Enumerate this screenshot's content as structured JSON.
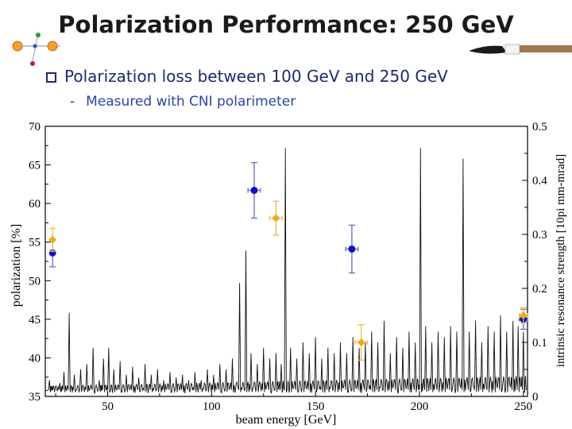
{
  "slide": {
    "title": "Polarization Performance: 250 GeV",
    "bullet": "Polarization loss between 100 GeV and 250 GeV",
    "subbullet": "Measured with CNI polarimeter",
    "subbullet_dash": "-",
    "title_color": "#1a1a1a",
    "bullet_color": "#1c2a6e",
    "subbullet_color": "#2a44a8"
  },
  "chart_data": {
    "type": "scatter",
    "title": "",
    "xlabel": "beam energy [GeV]",
    "ylabel": "polarization [%]",
    "y2label": "intrinsic resonance strength [10pi mm-mrad]",
    "xlim": [
      20,
      252
    ],
    "ylim": [
      35,
      70
    ],
    "y2lim": [
      0,
      0.5
    ],
    "xticks": [
      50,
      100,
      150,
      200,
      250
    ],
    "yticks": [
      35,
      40,
      45,
      50,
      55,
      60,
      65,
      70
    ],
    "y2ticks": [
      0,
      0.1,
      0.2,
      0.3,
      0.4,
      0.5
    ],
    "y2ticklabels": [
      "0",
      "0.1",
      "0.2",
      "0.3",
      "0.4",
      "0.5"
    ],
    "grid": false,
    "series": [
      {
        "color": "#1010c0",
        "errcolor": "#6a6acf",
        "marker": "circle",
        "points": [
          {
            "x": 23.5,
            "y": 53.6,
            "yerr": 1.8,
            "xerr": 0
          },
          {
            "x": 120.5,
            "y": 61.7,
            "yerr": 3.6,
            "xerr": 3
          },
          {
            "x": 167.5,
            "y": 54.1,
            "yerr": 3.1,
            "xerr": 3
          },
          {
            "x": 250,
            "y": 45.0,
            "yerr": 1.3,
            "xerr": 2
          }
        ]
      },
      {
        "color": "#f2a916",
        "errcolor": "#f2b84a",
        "marker": "diamond",
        "points": [
          {
            "x": 23.5,
            "y": 55.3,
            "yerr": 1.5,
            "xerr": 0
          },
          {
            "x": 131,
            "y": 58.1,
            "yerr": 2.2,
            "xerr": 3
          },
          {
            "x": 172,
            "y": 42.0,
            "yerr": 2.3,
            "xerr": 3
          },
          {
            "x": 250,
            "y": 45.5,
            "yerr": 1.0,
            "xerr": 2
          }
        ]
      }
    ],
    "resonance_peaks": [
      {
        "x": 22,
        "s": 0.03
      },
      {
        "x": 24,
        "s": 0.02
      },
      {
        "x": 27,
        "s": 0.025
      },
      {
        "x": 29,
        "s": 0.045
      },
      {
        "x": 31.5,
        "s": 0.155
      },
      {
        "x": 34,
        "s": 0.04
      },
      {
        "x": 37,
        "s": 0.05
      },
      {
        "x": 40,
        "s": 0.06
      },
      {
        "x": 43,
        "s": 0.09
      },
      {
        "x": 46,
        "s": 0.03
      },
      {
        "x": 48,
        "s": 0.07
      },
      {
        "x": 50.5,
        "s": 0.09
      },
      {
        "x": 53,
        "s": 0.05
      },
      {
        "x": 56,
        "s": 0.065
      },
      {
        "x": 59,
        "s": 0.04
      },
      {
        "x": 62,
        "s": 0.055
      },
      {
        "x": 65,
        "s": 0.035
      },
      {
        "x": 68,
        "s": 0.06
      },
      {
        "x": 71,
        "s": 0.04
      },
      {
        "x": 74,
        "s": 0.05
      },
      {
        "x": 77,
        "s": 0.03
      },
      {
        "x": 80,
        "s": 0.045
      },
      {
        "x": 83,
        "s": 0.035
      },
      {
        "x": 86,
        "s": 0.04
      },
      {
        "x": 89,
        "s": 0.03
      },
      {
        "x": 92,
        "s": 0.045
      },
      {
        "x": 95,
        "s": 0.03
      },
      {
        "x": 98,
        "s": 0.05
      },
      {
        "x": 101,
        "s": 0.04
      },
      {
        "x": 104,
        "s": 0.06
      },
      {
        "x": 107,
        "s": 0.05
      },
      {
        "x": 110,
        "s": 0.07
      },
      {
        "x": 113.5,
        "s": 0.21
      },
      {
        "x": 116.5,
        "s": 0.27
      },
      {
        "x": 119,
        "s": 0.08
      },
      {
        "x": 122,
        "s": 0.06
      },
      {
        "x": 125,
        "s": 0.09
      },
      {
        "x": 128,
        "s": 0.07
      },
      {
        "x": 131,
        "s": 0.08
      },
      {
        "x": 133.5,
        "s": 0.06
      },
      {
        "x": 135.5,
        "s": 0.46
      },
      {
        "x": 138,
        "s": 0.09
      },
      {
        "x": 141,
        "s": 0.07
      },
      {
        "x": 144,
        "s": 0.1
      },
      {
        "x": 147,
        "s": 0.08
      },
      {
        "x": 150,
        "s": 0.11
      },
      {
        "x": 153,
        "s": 0.07
      },
      {
        "x": 156,
        "s": 0.09
      },
      {
        "x": 159,
        "s": 0.08
      },
      {
        "x": 162,
        "s": 0.1
      },
      {
        "x": 165,
        "s": 0.08
      },
      {
        "x": 168,
        "s": 0.11
      },
      {
        "x": 171,
        "s": 0.09
      },
      {
        "x": 174,
        "s": 0.1
      },
      {
        "x": 177,
        "s": 0.12
      },
      {
        "x": 180,
        "s": 0.1
      },
      {
        "x": 183,
        "s": 0.14
      },
      {
        "x": 186,
        "s": 0.08
      },
      {
        "x": 189,
        "s": 0.11
      },
      {
        "x": 192,
        "s": 0.09
      },
      {
        "x": 195,
        "s": 0.12
      },
      {
        "x": 198,
        "s": 0.1
      },
      {
        "x": 200.5,
        "s": 0.46
      },
      {
        "x": 203,
        "s": 0.13
      },
      {
        "x": 206,
        "s": 0.1
      },
      {
        "x": 209,
        "s": 0.12
      },
      {
        "x": 212,
        "s": 0.11
      },
      {
        "x": 215,
        "s": 0.13
      },
      {
        "x": 218,
        "s": 0.12
      },
      {
        "x": 221,
        "s": 0.44
      },
      {
        "x": 224,
        "s": 0.12
      },
      {
        "x": 227,
        "s": 0.14
      },
      {
        "x": 230,
        "s": 0.1
      },
      {
        "x": 233,
        "s": 0.13
      },
      {
        "x": 236,
        "s": 0.12
      },
      {
        "x": 239,
        "s": 0.15
      },
      {
        "x": 242,
        "s": 0.12
      },
      {
        "x": 245,
        "s": 0.14
      },
      {
        "x": 247.5,
        "s": 0.13
      },
      {
        "x": 250,
        "s": 0.12
      }
    ]
  }
}
